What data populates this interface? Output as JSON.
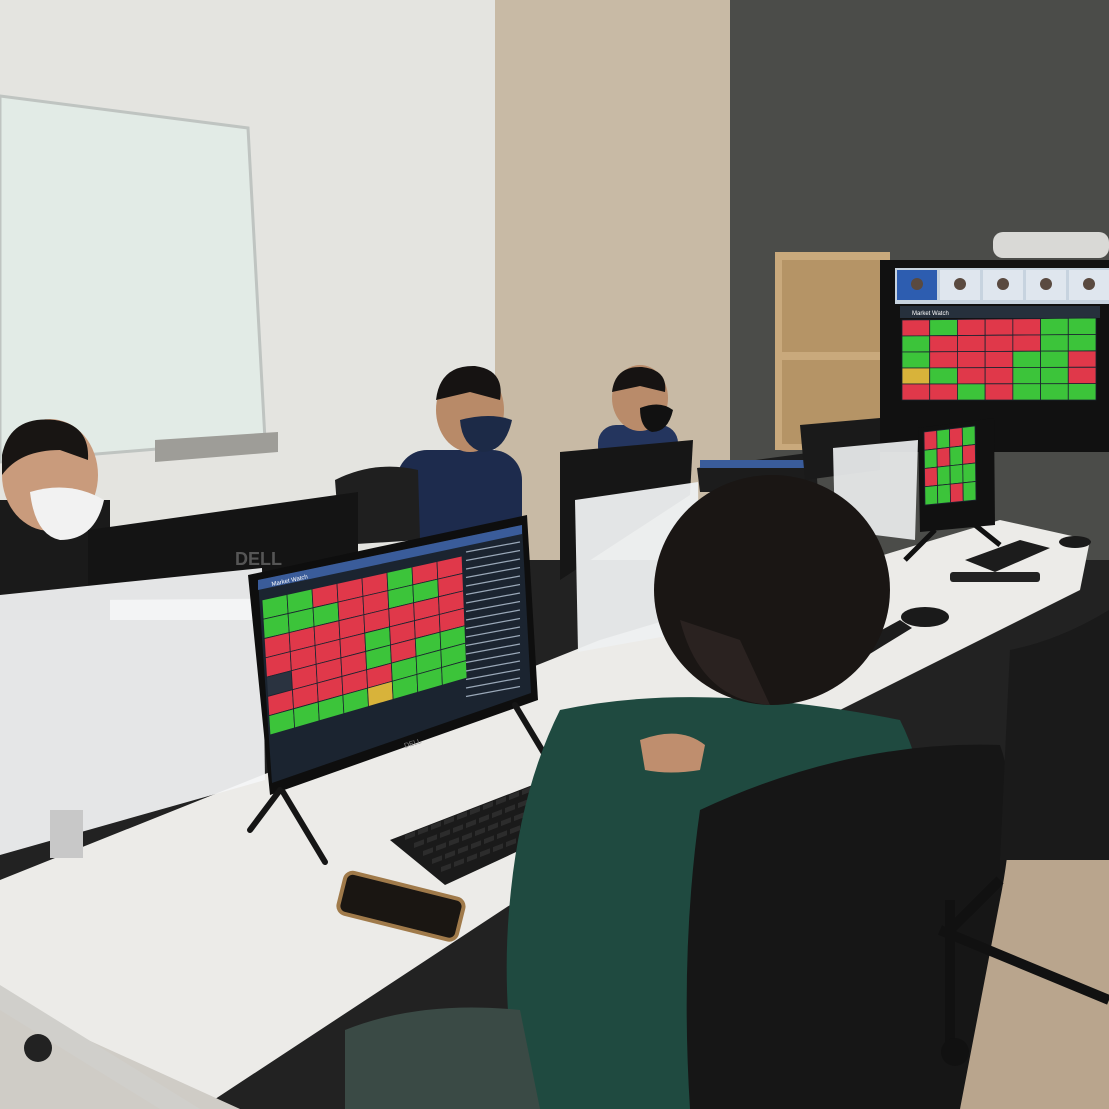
{
  "scene": {
    "description_type": "photo",
    "colors": {
      "left_wall": "#e4e4e0",
      "whiteboard": "#e2ebe6",
      "beige_wall": "#c8baa5",
      "dark_wall": "#4b4c49",
      "desk": "#ecebe8",
      "floor": "#cfccc6",
      "shirt": "#1f4a40",
      "hair": "#1a1614",
      "up_green": "#3cc43a",
      "down_red": "#e0384a",
      "neutral_yellow": "#d8b33a",
      "screen_bg": "#1b2430"
    }
  },
  "main_monitor": {
    "app_title": "Market Watch",
    "brand": "DELL",
    "heatmap_colors": [
      [
        "g",
        "g",
        "r",
        "r",
        "r",
        "g",
        "r",
        "r"
      ],
      [
        "g",
        "g",
        "g",
        "r",
        "r",
        "g",
        "g",
        "r"
      ],
      [
        "r",
        "r",
        "r",
        "r",
        "r",
        "r",
        "r",
        "r"
      ],
      [
        "r",
        "r",
        "r",
        "r",
        "g",
        "r",
        "r",
        "r"
      ],
      [
        "d",
        "r",
        "r",
        "r",
        "g",
        "r",
        "g",
        "g"
      ],
      [
        "r",
        "r",
        "r",
        "r",
        "r",
        "g",
        "g",
        "g"
      ],
      [
        "g",
        "g",
        "g",
        "g",
        "y",
        "g",
        "g",
        "g"
      ]
    ]
  },
  "wall_tv": {
    "app_title": "Market Watch",
    "heatmap_colors": [
      [
        "r",
        "g",
        "r",
        "r",
        "r",
        "g",
        "g"
      ],
      [
        "g",
        "r",
        "r",
        "r",
        "r",
        "g",
        "g"
      ],
      [
        "g",
        "r",
        "r",
        "r",
        "g",
        "g",
        "r"
      ],
      [
        "y",
        "g",
        "r",
        "r",
        "g",
        "g",
        "r"
      ],
      [
        "r",
        "r",
        "g",
        "r",
        "g",
        "g",
        "g"
      ]
    ]
  },
  "side_monitor": {
    "heatmap_colors": [
      [
        "r",
        "g",
        "r",
        "g"
      ],
      [
        "g",
        "r",
        "g",
        "r"
      ],
      [
        "r",
        "g",
        "g",
        "g"
      ],
      [
        "g",
        "g",
        "r",
        "g"
      ]
    ]
  },
  "rear_monitor": {
    "brand": "DELL"
  }
}
